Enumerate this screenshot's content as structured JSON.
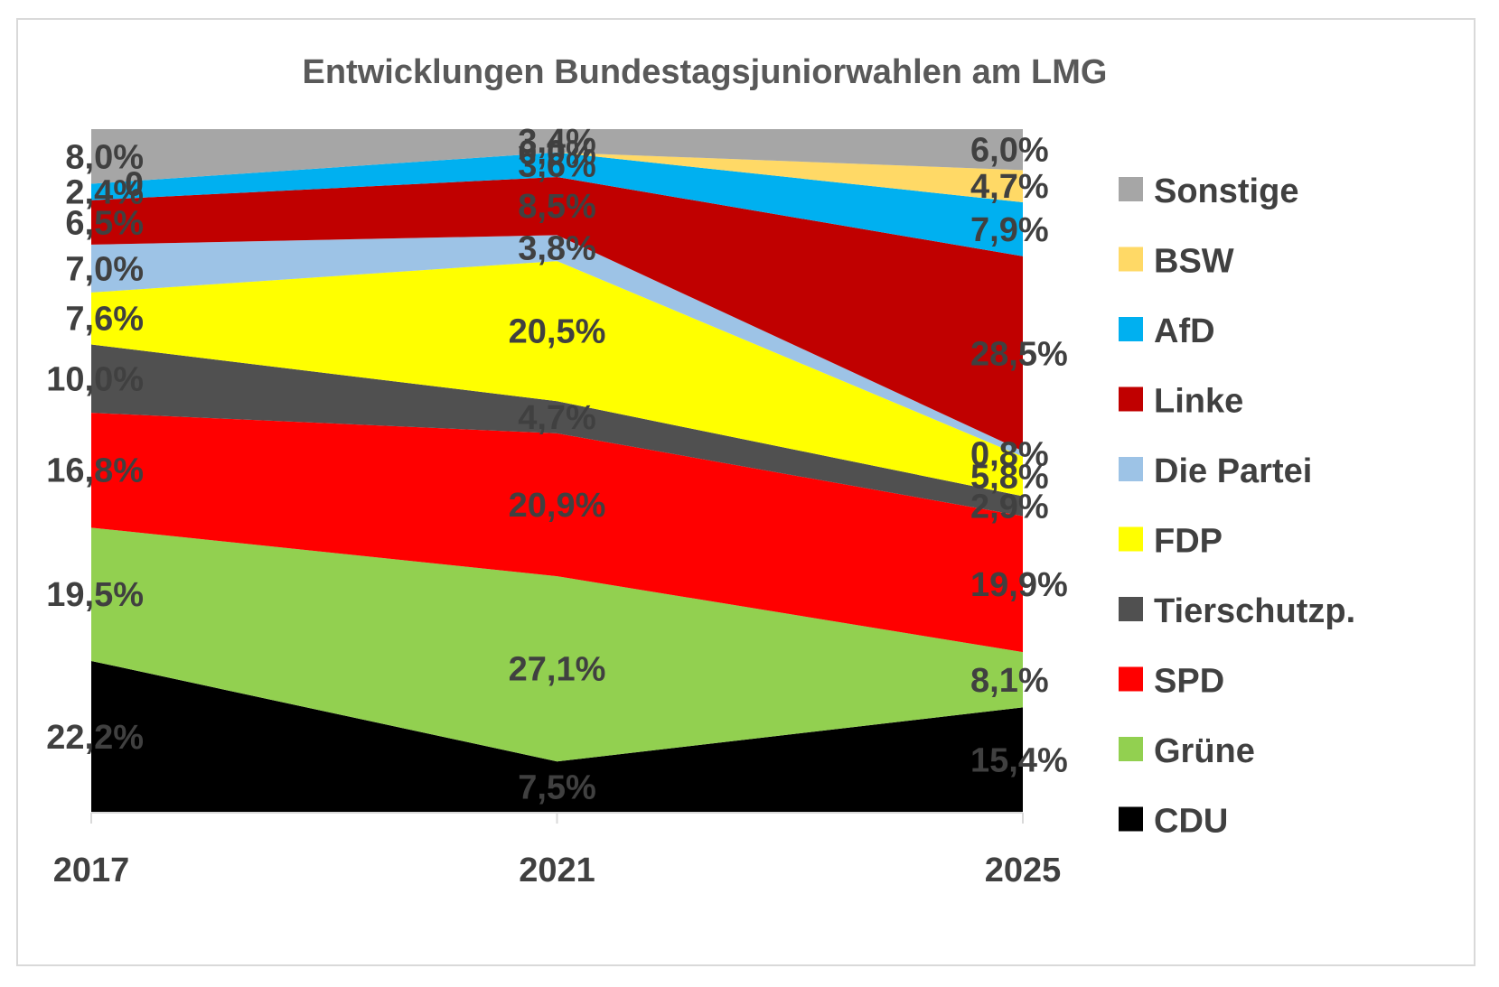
{
  "chart_data": {
    "type": "area",
    "stacked": true,
    "title": "Entwicklungen Bundestagsjuniorwahlen am LMG",
    "categories": [
      "2017",
      "2021",
      "2025"
    ],
    "xlabel": "",
    "ylabel": "",
    "ylim": [
      0,
      100
    ],
    "grid": false,
    "legend_position": "right",
    "series": [
      {
        "name": "CDU",
        "color": "#000000",
        "values": [
          22.2,
          7.5,
          15.4
        ],
        "labels": [
          "22,2%",
          "7,5%",
          "15,4%"
        ]
      },
      {
        "name": "Grüne",
        "color": "#92d050",
        "values": [
          19.5,
          27.1,
          8.1
        ],
        "labels": [
          "19,5%",
          "27,1%",
          "8,1%"
        ]
      },
      {
        "name": "SPD",
        "color": "#ff0000",
        "values": [
          16.8,
          20.9,
          19.9
        ],
        "labels": [
          "16,8%",
          "20,9%",
          "19,9%"
        ]
      },
      {
        "name": "Tierschutzp.",
        "color": "#505050",
        "values": [
          10.0,
          4.7,
          2.9
        ],
        "labels": [
          "10,0%",
          "4,7%",
          "2,9%"
        ]
      },
      {
        "name": "FDP",
        "color": "#ffff00",
        "values": [
          7.6,
          20.5,
          5.8
        ],
        "labels": [
          "7,6%",
          "20,5%",
          "5,8%"
        ]
      },
      {
        "name": "Die Partei",
        "color": "#9dc3e6",
        "values": [
          7.0,
          3.8,
          0.8
        ],
        "labels": [
          "7,0%",
          "3,8%",
          "0,8%"
        ]
      },
      {
        "name": "Linke",
        "color": "#c00000",
        "values": [
          6.5,
          8.5,
          28.5
        ],
        "labels": [
          "6,5%",
          "8,5%",
          "28,5%"
        ]
      },
      {
        "name": "AfD",
        "color": "#00b0f0",
        "values": [
          2.4,
          3.6,
          7.9
        ],
        "labels": [
          "2,4%",
          "3,6%",
          "7,9%"
        ]
      },
      {
        "name": "BSW",
        "color": "#ffd966",
        "values": [
          0,
          0.0,
          4.7
        ],
        "labels": [
          "0",
          "0,0%",
          "4,7%"
        ]
      },
      {
        "name": "Sonstige",
        "color": "#a6a6a6",
        "values": [
          8.0,
          3.4,
          6.0
        ],
        "labels": [
          "8,0%",
          "3,4%",
          "6,0%"
        ]
      }
    ]
  }
}
